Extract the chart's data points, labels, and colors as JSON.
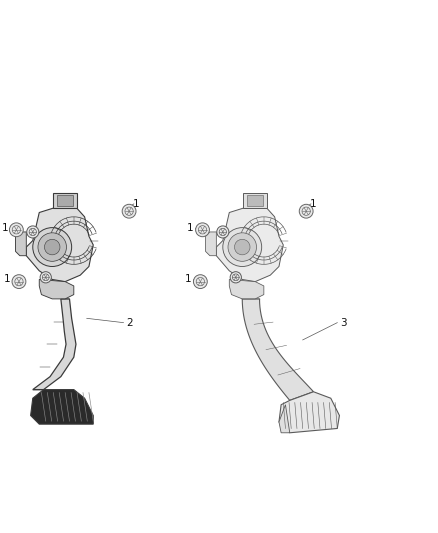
{
  "background_color": "#ffffff",
  "line_color_dark": "#3a3a3a",
  "line_color_mid": "#5a5a5a",
  "line_color_light": "#8a8a8a",
  "fill_dark": "#2a2a2a",
  "fill_mid": "#7a7a7a",
  "fill_light": "#c8c8c8",
  "label_fontsize": 7.5,
  "figure_width": 4.38,
  "figure_height": 5.33,
  "dpi": 100,
  "left_assembly": {
    "ox": 0.12,
    "oy": 0.28
  },
  "right_assembly": {
    "ox": 0.56,
    "oy": 0.28
  }
}
